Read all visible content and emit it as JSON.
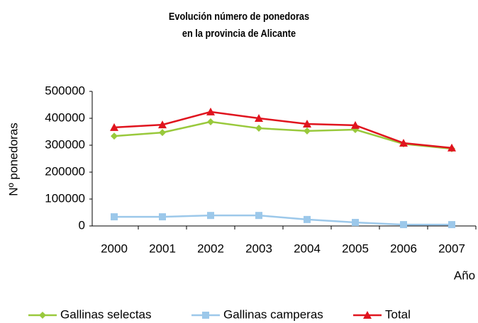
{
  "chart_data": {
    "type": "line",
    "title": [
      "Evolución número de ponedoras",
      "en la provincia de Alicante"
    ],
    "y_label": "Nº ponedoras",
    "x_label": "Año",
    "categories": [
      "2000",
      "2001",
      "2002",
      "2003",
      "2004",
      "2005",
      "2006",
      "2007"
    ],
    "series": [
      {
        "name": "Gallinas selectas",
        "color": "#99c93c",
        "marker": "diamond",
        "values": [
          334000,
          347000,
          387000,
          363000,
          353000,
          358000,
          305000,
          287000
        ]
      },
      {
        "name": "Gallinas camperas",
        "color": "#9cc8ea",
        "marker": "square",
        "values": [
          34000,
          34000,
          39000,
          39000,
          24000,
          13000,
          5000,
          5000
        ]
      },
      {
        "name": "Total",
        "color": "#e0141e",
        "marker": "triangle",
        "values": [
          366000,
          376000,
          424000,
          400000,
          379000,
          374000,
          308000,
          290000
        ]
      }
    ],
    "ylim": [
      0,
      500000
    ],
    "yticks": [
      0,
      100000,
      200000,
      300000,
      400000,
      500000
    ],
    "grid": false
  }
}
